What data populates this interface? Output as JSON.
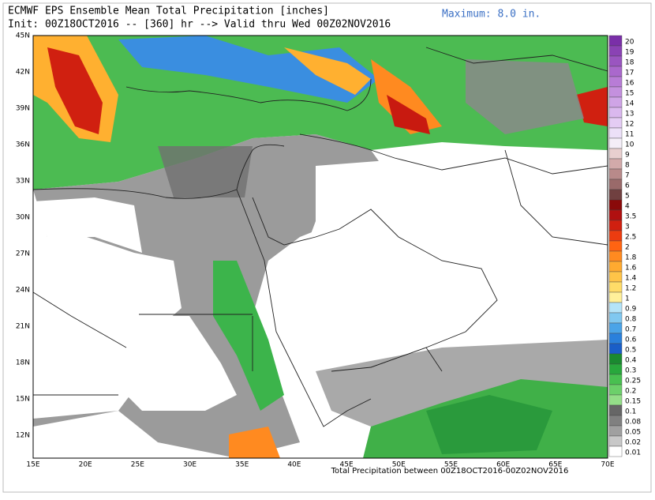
{
  "header": {
    "title": "ECMWF EPS Ensemble Mean Total Precipitation [inches]",
    "subtitle": "Init: 00Z18OCT2016 -- [360] hr --> Valid thru Wed 00Z02NOV2016",
    "maximum": "Maximum: 8.0 in."
  },
  "map": {
    "lat_labels": [
      "45N",
      "42N",
      "39N",
      "36N",
      "33N",
      "30N",
      "27N",
      "24N",
      "21N",
      "18N",
      "15N",
      "12N"
    ],
    "lon_labels": [
      "15E",
      "20E",
      "25E",
      "30E",
      "35E",
      "40E",
      "45E",
      "50E",
      "55E",
      "60E",
      "65E",
      "70E"
    ],
    "footer": "Total Precipitation between 00Z18OCT2016-00Z02NOV2016"
  },
  "colorbar": [
    {
      "label": "20",
      "color": "#7a2fa8"
    },
    {
      "label": "19",
      "color": "#8a42b4"
    },
    {
      "label": "18",
      "color": "#9a55c0"
    },
    {
      "label": "17",
      "color": "#aa68cc"
    },
    {
      "label": "16",
      "color": "#b87cd6"
    },
    {
      "label": "15",
      "color": "#c490de"
    },
    {
      "label": "14",
      "color": "#cfa4e6"
    },
    {
      "label": "13",
      "color": "#dab8ee"
    },
    {
      "label": "12",
      "color": "#e4ccf4"
    },
    {
      "label": "11",
      "color": "#ece0f8"
    },
    {
      "label": "10",
      "color": "#f4eef8"
    },
    {
      "label": "9",
      "color": "#e8cfcf"
    },
    {
      "label": "8",
      "color": "#d2aaaa"
    },
    {
      "label": "7",
      "color": "#b88a8a"
    },
    {
      "label": "6",
      "color": "#9a6a6a"
    },
    {
      "label": "5",
      "color": "#704040"
    },
    {
      "label": "4",
      "color": "#8a0a0a"
    },
    {
      "label": "3.5",
      "color": "#b01010"
    },
    {
      "label": "3",
      "color": "#d02010"
    },
    {
      "label": "2.5",
      "color": "#ec3c10"
    },
    {
      "label": "2",
      "color": "#ff6412"
    },
    {
      "label": "1.8",
      "color": "#ff8a20"
    },
    {
      "label": "1.6",
      "color": "#ffaa30"
    },
    {
      "label": "1.4",
      "color": "#ffc448"
    },
    {
      "label": "1.2",
      "color": "#ffdc68"
    },
    {
      "label": "1",
      "color": "#fff09a"
    },
    {
      "label": "0.9",
      "color": "#b4e4f8"
    },
    {
      "label": "0.8",
      "color": "#80c8f0"
    },
    {
      "label": "0.7",
      "color": "#4aa4e8"
    },
    {
      "label": "0.6",
      "color": "#2a80dc"
    },
    {
      "label": "0.5",
      "color": "#1a5ec8"
    },
    {
      "label": "0.4",
      "color": "#1a8a30"
    },
    {
      "label": "0.3",
      "color": "#28a83c"
    },
    {
      "label": "0.25",
      "color": "#48c050"
    },
    {
      "label": "0.2",
      "color": "#6cd06a"
    },
    {
      "label": "0.15",
      "color": "#94de88"
    },
    {
      "label": "0.1",
      "color": "#666666"
    },
    {
      "label": "0.08",
      "color": "#808080"
    },
    {
      "label": "0.05",
      "color": "#a0a0a0"
    },
    {
      "label": "0.02",
      "color": "#c8c8c8"
    },
    {
      "label": "0.01",
      "color": "#ffffff"
    }
  ]
}
